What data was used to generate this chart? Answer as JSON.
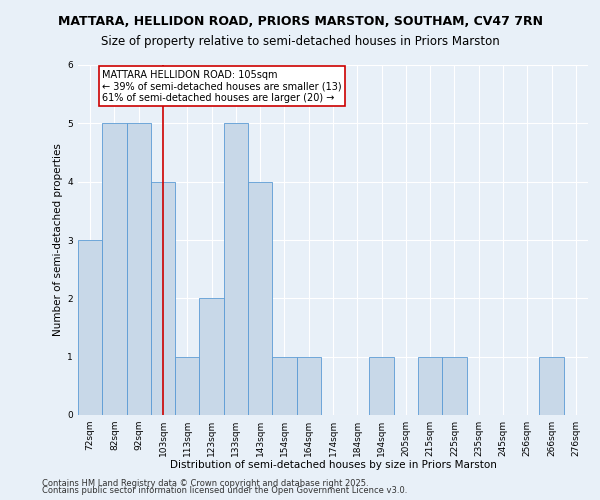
{
  "title1": "MATTARA, HELLIDON ROAD, PRIORS MARSTON, SOUTHAM, CV47 7RN",
  "title2": "Size of property relative to semi-detached houses in Priors Marston",
  "xlabel": "Distribution of semi-detached houses by size in Priors Marston",
  "ylabel": "Number of semi-detached properties",
  "annotation_line1": "MATTARA HELLIDON ROAD: 105sqm",
  "annotation_line2": "← 39% of semi-detached houses are smaller (13)",
  "annotation_line3": "61% of semi-detached houses are larger (20) →",
  "footer1": "Contains HM Land Registry data © Crown copyright and database right 2025.",
  "footer2": "Contains public sector information licensed under the Open Government Licence v3.0.",
  "categories": [
    "72sqm",
    "82sqm",
    "92sqm",
    "103sqm",
    "113sqm",
    "123sqm",
    "133sqm",
    "143sqm",
    "154sqm",
    "164sqm",
    "174sqm",
    "184sqm",
    "194sqm",
    "205sqm",
    "215sqm",
    "225sqm",
    "235sqm",
    "245sqm",
    "256sqm",
    "266sqm",
    "276sqm"
  ],
  "values": [
    3,
    5,
    5,
    4,
    1,
    2,
    5,
    4,
    1,
    1,
    0,
    0,
    1,
    0,
    1,
    1,
    0,
    0,
    0,
    1,
    0
  ],
  "bar_color": "#c8d8e8",
  "bar_edge_color": "#5b9bd5",
  "red_line_index": 3,
  "ylim": [
    0,
    6
  ],
  "yticks": [
    0,
    1,
    2,
    3,
    4,
    5,
    6
  ],
  "background_color": "#e8f0f8",
  "plot_bg_color": "#e8f0f8",
  "grid_color": "#ffffff",
  "annotation_box_color": "#ffffff",
  "annotation_box_edge": "#cc0000",
  "red_line_color": "#cc0000",
  "title_fontsize": 9,
  "subtitle_fontsize": 8.5,
  "axis_label_fontsize": 7.5,
  "tick_fontsize": 6.5,
  "annotation_fontsize": 7,
  "footer_fontsize": 6
}
